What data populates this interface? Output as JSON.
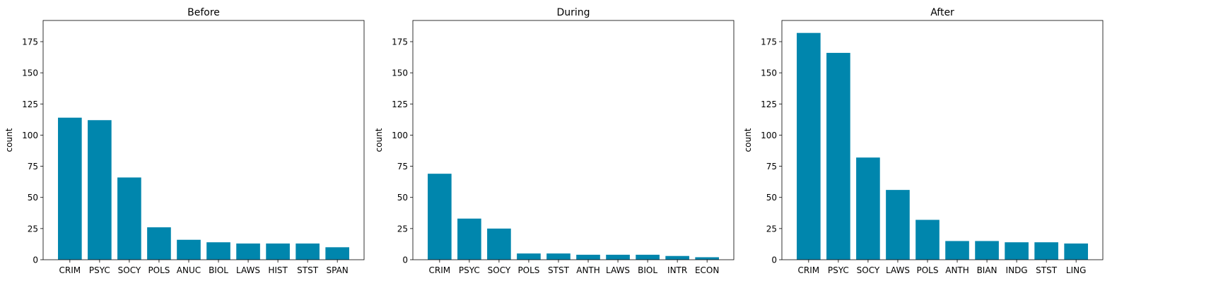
{
  "colors": {
    "bar": "#0086ad",
    "axis": "#000000"
  },
  "chart_data": [
    {
      "type": "bar",
      "title": "Before",
      "xlabel": "",
      "ylabel": "count",
      "ylim": [
        0,
        192
      ],
      "yticks": [
        0,
        25,
        50,
        75,
        100,
        125,
        150,
        175
      ],
      "grid": false,
      "categories": [
        "CRIM",
        "PSYC",
        "SOCY",
        "POLS",
        "ANUC",
        "BIOL",
        "LAWS",
        "HIST",
        "STST",
        "SPAN"
      ],
      "values": [
        114,
        112,
        66,
        26,
        16,
        14,
        13,
        13,
        13,
        10
      ]
    },
    {
      "type": "bar",
      "title": "During",
      "xlabel": "",
      "ylabel": "count",
      "ylim": [
        0,
        192
      ],
      "yticks": [
        0,
        25,
        50,
        75,
        100,
        125,
        150,
        175
      ],
      "grid": false,
      "categories": [
        "CRIM",
        "PSYC",
        "SOCY",
        "POLS",
        "STST",
        "ANTH",
        "LAWS",
        "BIOL",
        "INTR",
        "ECON"
      ],
      "values": [
        69,
        33,
        25,
        5,
        5,
        4,
        4,
        4,
        3,
        2
      ]
    },
    {
      "type": "bar",
      "title": "After",
      "xlabel": "",
      "ylabel": "count",
      "ylim": [
        0,
        192
      ],
      "yticks": [
        0,
        25,
        50,
        75,
        100,
        125,
        150,
        175
      ],
      "grid": false,
      "categories": [
        "CRIM",
        "PSYC",
        "SOCY",
        "LAWS",
        "POLS",
        "ANTH",
        "BIAN",
        "INDG",
        "STST",
        "LING"
      ],
      "values": [
        182,
        166,
        82,
        56,
        32,
        15,
        15,
        14,
        14,
        13
      ]
    }
  ]
}
